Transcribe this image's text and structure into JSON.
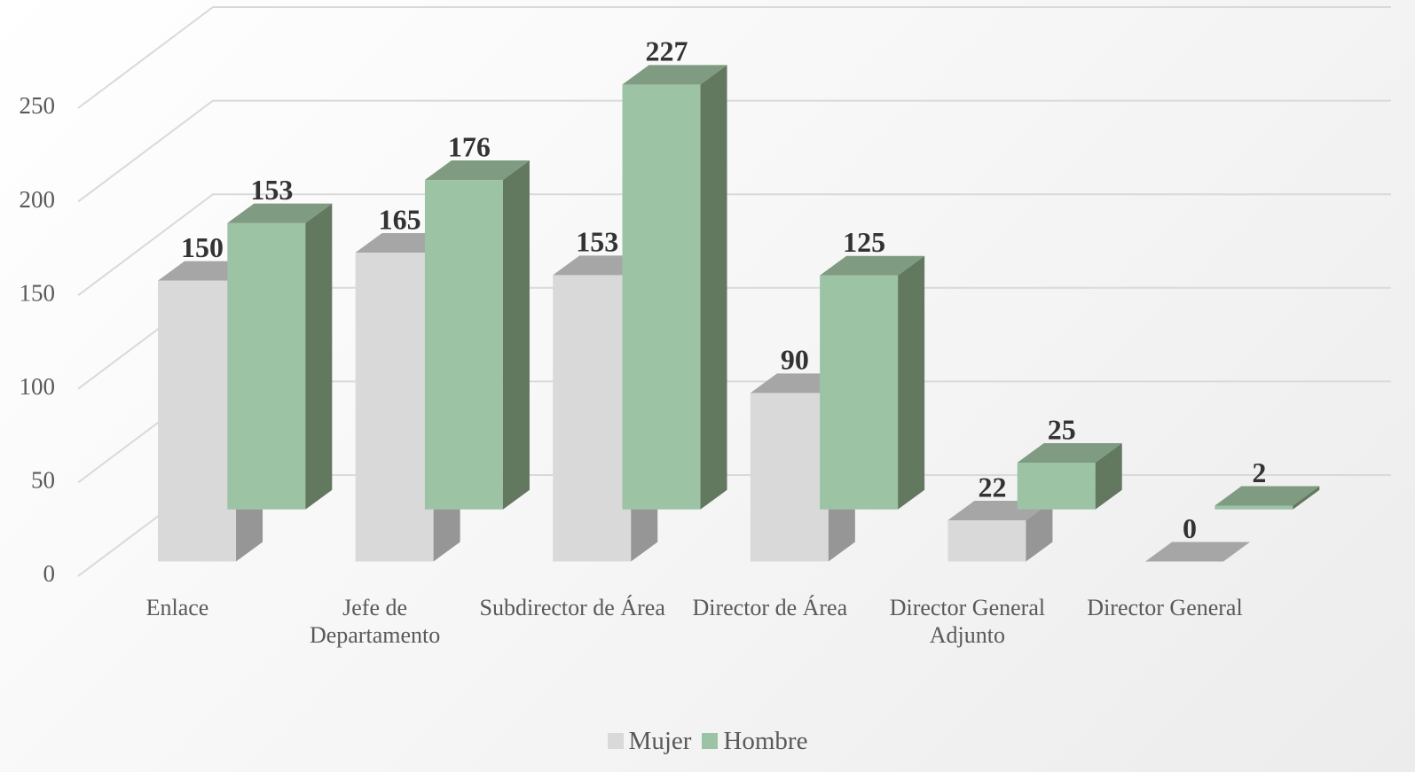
{
  "chart_data": {
    "type": "bar3d",
    "categories": [
      "Enlace",
      "Jefe de Departamento",
      "Subdirector de Área",
      "Director de Área",
      "Director General Adjunto",
      "Director General"
    ],
    "series": [
      {
        "name": "Mujer",
        "color": "#d9d9d9",
        "values": [
          150,
          165,
          153,
          90,
          22,
          0
        ]
      },
      {
        "name": "Hombre",
        "color": "#9dc3a5",
        "values": [
          153,
          176,
          227,
          125,
          25,
          2
        ]
      }
    ],
    "ylim": [
      0,
      250
    ],
    "yticks": [
      0,
      50,
      100,
      150,
      200,
      250
    ],
    "grid": true,
    "legend": "bottom"
  }
}
